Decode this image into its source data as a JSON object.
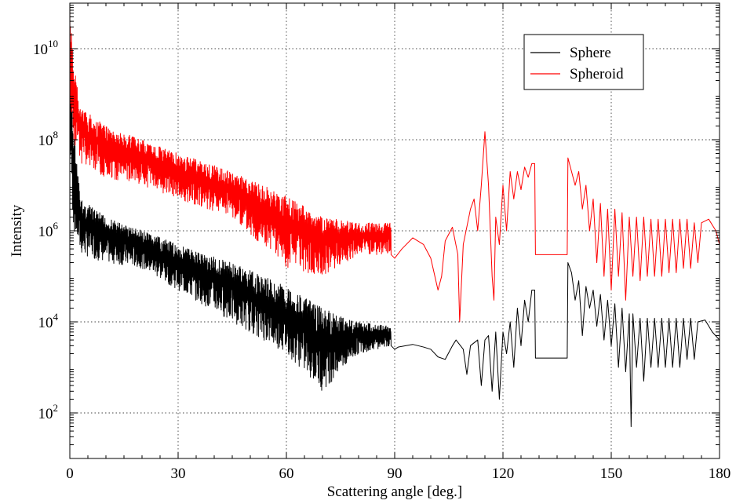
{
  "chart_data": {
    "type": "line",
    "xlabel": "Scattering angle [deg.]",
    "ylabel": "Intensity",
    "xlim": [
      0,
      180
    ],
    "ylim": [
      10,
      100000000000.0
    ],
    "yscale": "log",
    "grid": true,
    "legend_position": "top-right",
    "x_ticks": [
      0,
      30,
      60,
      90,
      120,
      150,
      180
    ],
    "x_tick_labels": [
      "0",
      "30",
      "60",
      "90",
      "120",
      "150",
      "180"
    ],
    "y_ticks": [
      100,
      10000,
      1000000,
      100000000,
      10000000000
    ],
    "y_tick_labels": [
      {
        "base": "10",
        "exp": "2"
      },
      {
        "base": "10",
        "exp": "4"
      },
      {
        "base": "10",
        "exp": "6"
      },
      {
        "base": "10",
        "exp": "8"
      },
      {
        "base": "10",
        "exp": "10"
      }
    ],
    "series": [
      {
        "name": "Sphere",
        "color": "#000000",
        "envelope": [
          {
            "x": 0,
            "hi": 5000000000.0,
            "lo": 50000000.0
          },
          {
            "x": 1,
            "hi": 200000000.0,
            "lo": 1000000.0
          },
          {
            "x": 3,
            "hi": 5000000.0,
            "lo": 300000.0
          },
          {
            "x": 10,
            "hi": 2000000.0,
            "lo": 200000.0
          },
          {
            "x": 20,
            "hi": 1000000.0,
            "lo": 150000.0
          },
          {
            "x": 30,
            "hi": 500000.0,
            "lo": 50000.0
          },
          {
            "x": 45,
            "hi": 200000.0,
            "lo": 10000.0
          },
          {
            "x": 60,
            "hi": 60000.0,
            "lo": 2000.0
          },
          {
            "x": 70,
            "hi": 20000.0,
            "lo": 300.0
          },
          {
            "x": 80,
            "hi": 10000.0,
            "lo": 2000.0
          },
          {
            "x": 89,
            "hi": 8000.0,
            "lo": 3000.0
          }
        ],
        "smooth": [
          {
            "x": 89,
            "y": 3000.0
          },
          {
            "x": 90,
            "y": 2500.0
          },
          {
            "x": 91,
            "y": 2800.0
          },
          {
            "x": 95,
            "y": 3200.0
          },
          {
            "x": 98,
            "y": 2800.0
          },
          {
            "x": 100,
            "y": 2500.0
          },
          {
            "x": 102,
            "y": 1700.0
          },
          {
            "x": 104,
            "y": 1500.0
          },
          {
            "x": 106,
            "y": 3000.0
          },
          {
            "x": 107,
            "y": 4000.0
          },
          {
            "x": 109,
            "y": 2500.0
          },
          {
            "x": 110,
            "y": 700.0
          },
          {
            "x": 111,
            "y": 3000.0
          },
          {
            "x": 113,
            "y": 4000.0
          },
          {
            "x": 114,
            "y": 400.0
          },
          {
            "x": 115,
            "y": 4000.0
          },
          {
            "x": 116,
            "y": 5000.0
          },
          {
            "x": 117,
            "y": 300.0
          },
          {
            "x": 118,
            "y": 6000.0
          },
          {
            "x": 119,
            "y": 200.0
          },
          {
            "x": 120,
            "y": 6000.0
          },
          {
            "x": 121,
            "y": 2000.0
          },
          {
            "x": 122,
            "y": 10000.0
          },
          {
            "x": 123,
            "y": 1000.0
          },
          {
            "x": 124,
            "y": 20000.0
          },
          {
            "x": 125,
            "y": 3000.0
          },
          {
            "x": 126,
            "y": 30000.0
          },
          {
            "x": 127,
            "y": 10000.0
          },
          {
            "x": 128,
            "y": 50000.0
          },
          {
            "x": 128.8,
            "y": 50000.0
          },
          {
            "x": 129,
            "y": 1600.0
          },
          {
            "x": 137.8,
            "y": 1600.0
          },
          {
            "x": 138,
            "y": 200000.0
          },
          {
            "x": 139,
            "y": 120000.0
          },
          {
            "x": 140,
            "y": 30000.0
          },
          {
            "x": 141,
            "y": 80000.0
          },
          {
            "x": 142,
            "y": 5000.0
          },
          {
            "x": 143,
            "y": 60000.0
          },
          {
            "x": 144,
            "y": 20000.0
          },
          {
            "x": 145,
            "y": 50000.0
          },
          {
            "x": 146,
            "y": 8000.0
          },
          {
            "x": 147,
            "y": 40000.0
          },
          {
            "x": 148,
            "y": 4000.0
          },
          {
            "x": 149,
            "y": 30000.0
          },
          {
            "x": 150,
            "y": 3000.0
          },
          {
            "x": 151,
            "y": 25000.0
          },
          {
            "x": 152,
            "y": 1000.0
          },
          {
            "x": 153,
            "y": 20000.0
          },
          {
            "x": 154,
            "y": 800.0
          },
          {
            "x": 155,
            "y": 15000.0
          },
          {
            "x": 155.5,
            "y": 50
          },
          {
            "x": 156,
            "y": 15000.0
          },
          {
            "x": 157,
            "y": 1000.0
          },
          {
            "x": 158,
            "y": 12000.0
          },
          {
            "x": 159,
            "y": 500.0
          },
          {
            "x": 160,
            "y": 12000.0
          },
          {
            "x": 161,
            "y": 1000.0
          },
          {
            "x": 162,
            "y": 12000.0
          },
          {
            "x": 163,
            "y": 1000.0
          },
          {
            "x": 164,
            "y": 12000.0
          },
          {
            "x": 165,
            "y": 1000.0
          },
          {
            "x": 166,
            "y": 12000.0
          },
          {
            "x": 167,
            "y": 1000.0
          },
          {
            "x": 168,
            "y": 12000.0
          },
          {
            "x": 169,
            "y": 1000.0
          },
          {
            "x": 170,
            "y": 12000.0
          },
          {
            "x": 171,
            "y": 1500.0
          },
          {
            "x": 172,
            "y": 12000.0
          },
          {
            "x": 173,
            "y": 1500.0
          },
          {
            "x": 174,
            "y": 10000.0
          },
          {
            "x": 176,
            "y": 11000.0
          },
          {
            "x": 178,
            "y": 6000.0
          },
          {
            "x": 180,
            "y": 4000.0
          }
        ]
      },
      {
        "name": "Spheroid",
        "color": "#ff0000",
        "envelope": [
          {
            "x": 0,
            "hi": 90000000000.0,
            "lo": 800000000.0
          },
          {
            "x": 1,
            "hi": 5000000000.0,
            "lo": 100000000.0
          },
          {
            "x": 3,
            "hi": 500000000.0,
            "lo": 30000000.0
          },
          {
            "x": 10,
            "hi": 200000000.0,
            "lo": 15000000.0
          },
          {
            "x": 20,
            "hi": 100000000.0,
            "lo": 10000000.0
          },
          {
            "x": 30,
            "hi": 50000000.0,
            "lo": 5000000.0
          },
          {
            "x": 45,
            "hi": 20000000.0,
            "lo": 2000000.0
          },
          {
            "x": 60,
            "hi": 6000000.0,
            "lo": 150000.0
          },
          {
            "x": 70,
            "hi": 2000000.0,
            "lo": 100000.0
          },
          {
            "x": 80,
            "hi": 1500000.0,
            "lo": 300000.0
          },
          {
            "x": 89,
            "hi": 1500000.0,
            "lo": 300000.0
          }
        ],
        "smooth": [
          {
            "x": 89,
            "y": 300000.0
          },
          {
            "x": 90,
            "y": 250000.0
          },
          {
            "x": 92,
            "y": 400000.0
          },
          {
            "x": 95,
            "y": 700000.0
          },
          {
            "x": 98,
            "y": 500000.0
          },
          {
            "x": 100,
            "y": 250000.0
          },
          {
            "x": 102,
            "y": 50000.0
          },
          {
            "x": 103,
            "y": 100000.0
          },
          {
            "x": 104,
            "y": 600000.0
          },
          {
            "x": 106,
            "y": 1200000.0
          },
          {
            "x": 107.5,
            "y": 300000.0
          },
          {
            "x": 108,
            "y": 10000.0
          },
          {
            "x": 109,
            "y": 500000.0
          },
          {
            "x": 111,
            "y": 3000000.0
          },
          {
            "x": 112,
            "y": 5000000.0
          },
          {
            "x": 113,
            "y": 1000000.0
          },
          {
            "x": 114,
            "y": 10000000.0
          },
          {
            "x": 115,
            "y": 150000000.0
          },
          {
            "x": 116,
            "y": 10000000.0
          },
          {
            "x": 117,
            "y": 100000.0
          },
          {
            "x": 117.5,
            "y": 30000.0
          },
          {
            "x": 118,
            "y": 2000000.0
          },
          {
            "x": 119,
            "y": 500000.0
          },
          {
            "x": 120,
            "y": 10000000.0
          },
          {
            "x": 121,
            "y": 1000000.0
          },
          {
            "x": 122,
            "y": 20000000.0
          },
          {
            "x": 123,
            "y": 5000000.0
          },
          {
            "x": 124,
            "y": 20000000.0
          },
          {
            "x": 125,
            "y": 8000000.0
          },
          {
            "x": 126,
            "y": 25000000.0
          },
          {
            "x": 127,
            "y": 15000000.0
          },
          {
            "x": 128,
            "y": 30000000.0
          },
          {
            "x": 128.8,
            "y": 30000000.0
          },
          {
            "x": 129,
            "y": 300000.0
          },
          {
            "x": 137.8,
            "y": 300000.0
          },
          {
            "x": 138,
            "y": 40000000.0
          },
          {
            "x": 139,
            "y": 20000000.0
          },
          {
            "x": 140,
            "y": 10000000.0
          },
          {
            "x": 141,
            "y": 20000000.0
          },
          {
            "x": 142,
            "y": 3000000.0
          },
          {
            "x": 143,
            "y": 10000000.0
          },
          {
            "x": 144,
            "y": 1000000.0
          },
          {
            "x": 145,
            "y": 5000000.0
          },
          {
            "x": 146,
            "y": 200000.0
          },
          {
            "x": 147,
            "y": 4000000.0
          },
          {
            "x": 148,
            "y": 100000.0
          },
          {
            "x": 149,
            "y": 3000000.0
          },
          {
            "x": 150,
            "y": 50000.0
          },
          {
            "x": 151,
            "y": 3000000.0
          },
          {
            "x": 152,
            "y": 100000.0
          },
          {
            "x": 153,
            "y": 2500000.0
          },
          {
            "x": 154,
            "y": 30000.0
          },
          {
            "x": 155,
            "y": 2000000.0
          },
          {
            "x": 156,
            "y": 100000.0
          },
          {
            "x": 157,
            "y": 2000000.0
          },
          {
            "x": 158,
            "y": 80000.0
          },
          {
            "x": 159,
            "y": 2000000.0
          },
          {
            "x": 160,
            "y": 100000.0
          },
          {
            "x": 161,
            "y": 1800000.0
          },
          {
            "x": 162,
            "y": 100000.0
          },
          {
            "x": 163,
            "y": 1800000.0
          },
          {
            "x": 164,
            "y": 100000.0
          },
          {
            "x": 165,
            "y": 1800000.0
          },
          {
            "x": 166,
            "y": 120000.0
          },
          {
            "x": 167,
            "y": 1800000.0
          },
          {
            "x": 168,
            "y": 120000.0
          },
          {
            "x": 169,
            "y": 1800000.0
          },
          {
            "x": 170,
            "y": 150000.0
          },
          {
            "x": 171,
            "y": 1800000.0
          },
          {
            "x": 172,
            "y": 150000.0
          },
          {
            "x": 173,
            "y": 1500000.0
          },
          {
            "x": 174,
            "y": 200000.0
          },
          {
            "x": 175,
            "y": 1500000.0
          },
          {
            "x": 177,
            "y": 1800000.0
          },
          {
            "x": 179,
            "y": 1000000.0
          },
          {
            "x": 180,
            "y": 500000.0
          }
        ]
      }
    ]
  }
}
